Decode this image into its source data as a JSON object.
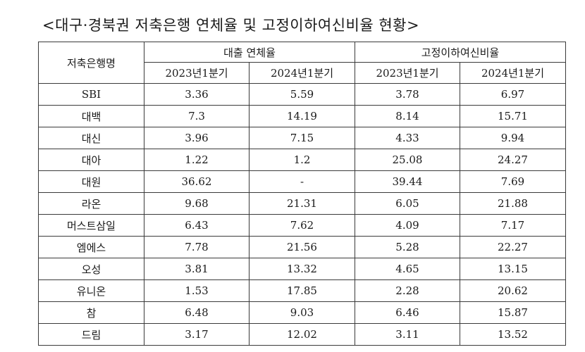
{
  "title": "<대구·경북권 저축은행 연체율 및 고정이하여신비율 현황>",
  "table": {
    "bank_header": "저축은행명",
    "group_headers": [
      "대출 연체율",
      "고정이하여신비율"
    ],
    "period_headers": [
      "2023년1분기",
      "2024년1분기",
      "2023년1분기",
      "2024년1분기"
    ],
    "rows": [
      {
        "name": "SBI",
        "v": [
          "3.36",
          "5.59",
          "3.78",
          "6.97"
        ]
      },
      {
        "name": "대백",
        "v": [
          "7.3",
          "14.19",
          "8.14",
          "15.71"
        ]
      },
      {
        "name": "대신",
        "v": [
          "3.96",
          "7.15",
          "4.33",
          "9.94"
        ]
      },
      {
        "name": "대아",
        "v": [
          "1.22",
          "1.2",
          "25.08",
          "24.27"
        ]
      },
      {
        "name": "대원",
        "v": [
          "36.62",
          "-",
          "39.44",
          "7.69"
        ]
      },
      {
        "name": "라온",
        "v": [
          "9.68",
          "21.31",
          "6.05",
          "21.88"
        ]
      },
      {
        "name": "머스트삼일",
        "v": [
          "6.43",
          "7.62",
          "4.09",
          "7.17"
        ]
      },
      {
        "name": "엠에스",
        "v": [
          "7.78",
          "21.56",
          "5.28",
          "22.27"
        ]
      },
      {
        "name": "오성",
        "v": [
          "3.81",
          "13.32",
          "4.65",
          "13.15"
        ]
      },
      {
        "name": "유니온",
        "v": [
          "1.53",
          "17.85",
          "2.28",
          "20.62"
        ]
      },
      {
        "name": "참",
        "v": [
          "6.48",
          "9.03",
          "6.46",
          "15.87"
        ]
      },
      {
        "name": "드림",
        "v": [
          "3.17",
          "12.02",
          "3.11",
          "13.52"
        ]
      }
    ]
  }
}
